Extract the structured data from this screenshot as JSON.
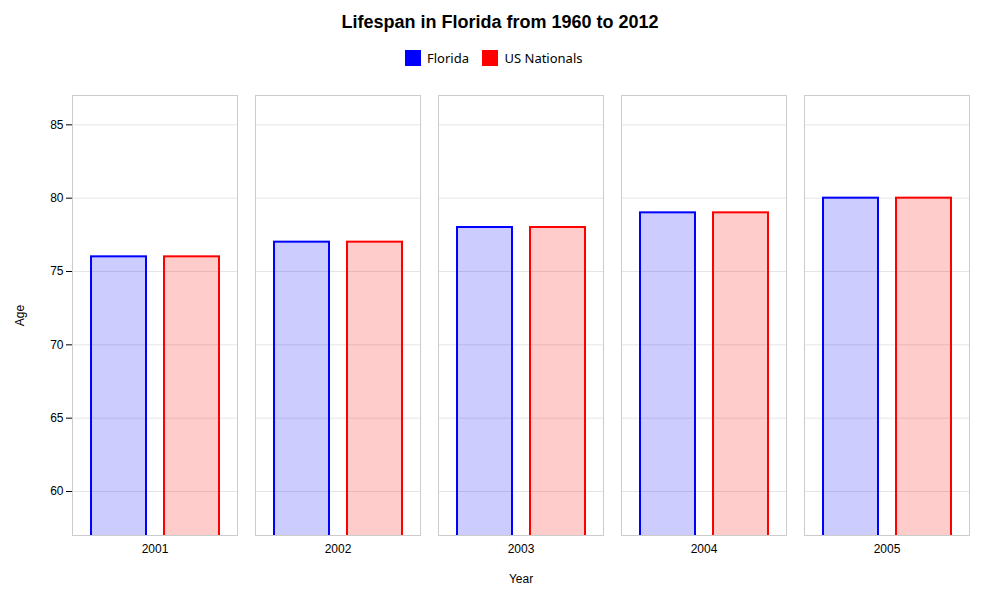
{
  "chart_data": {
    "type": "bar",
    "title": "Lifespan in Florida from 1960 to 2012",
    "xlabel": "Year",
    "ylabel": "Age",
    "categories": [
      "2001",
      "2002",
      "2003",
      "2004",
      "2005"
    ],
    "series": [
      {
        "name": "Florida",
        "color": "#0000ff",
        "values": [
          76.0,
          77.0,
          78.0,
          79.0,
          80.0
        ]
      },
      {
        "name": "US Nationals",
        "color": "#ff0000",
        "values": [
          76.0,
          77.0,
          78.0,
          79.0,
          80.0
        ]
      }
    ],
    "ylim": [
      57,
      87
    ],
    "yticks": [
      60,
      65,
      70,
      75,
      80,
      85
    ],
    "grid": true,
    "legend": "top"
  }
}
